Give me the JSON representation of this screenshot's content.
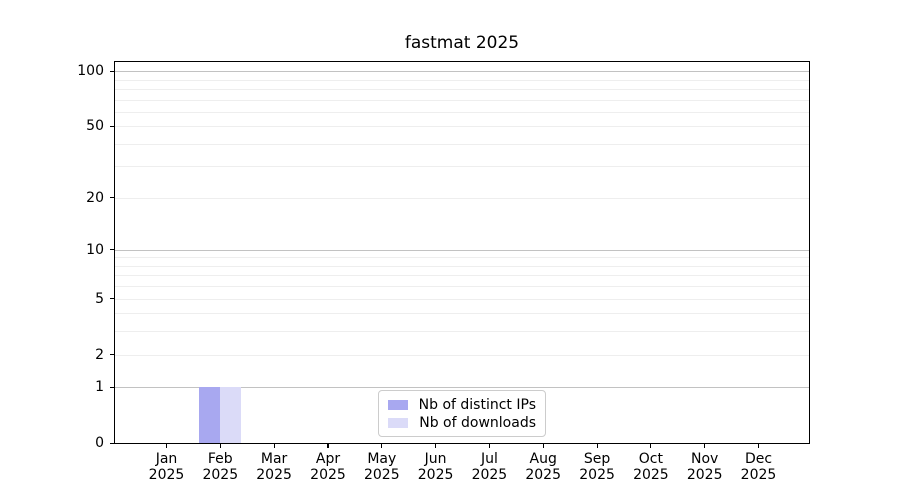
{
  "chart_data": {
    "type": "bar",
    "title": "fastmat 2025",
    "x": {
      "months": [
        "Jan",
        "Feb",
        "Mar",
        "Apr",
        "May",
        "Jun",
        "Jul",
        "Aug",
        "Sep",
        "Oct",
        "Nov",
        "Dec"
      ],
      "year": "2025"
    },
    "series": [
      {
        "name": "Nb of distinct IPs",
        "color": "#a8a8f0",
        "values": [
          0,
          1,
          0,
          0,
          0,
          0,
          0,
          0,
          0,
          0,
          0,
          0
        ]
      },
      {
        "name": "Nb of downloads",
        "color": "#dbdbf8",
        "values": [
          0,
          1,
          0,
          0,
          0,
          0,
          0,
          0,
          0,
          0,
          0,
          0
        ]
      }
    ],
    "y_axis": {
      "scale": "log1p",
      "ylim": [
        0,
        112
      ],
      "labeled_ticks": [
        100,
        50,
        20,
        10,
        5,
        2,
        1,
        0
      ],
      "major_grid_values": [
        1,
        10,
        100
      ],
      "minor_grid_values": [
        2,
        3,
        4,
        5,
        6,
        7,
        8,
        9,
        20,
        30,
        40,
        50,
        60,
        70,
        80,
        90
      ]
    },
    "legend": {
      "position": "lower center",
      "entries": [
        "Nb of distinct IPs",
        "Nb of downloads"
      ]
    },
    "grid": "both"
  },
  "colors": {
    "distinct_ips_bar": "#a8a8f0",
    "downloads_bar": "#dbdbf8",
    "grid_major": "#c2c2c2",
    "grid_minor": "#eeeeee",
    "spine": "#000000",
    "legend_border": "#cccccc"
  }
}
